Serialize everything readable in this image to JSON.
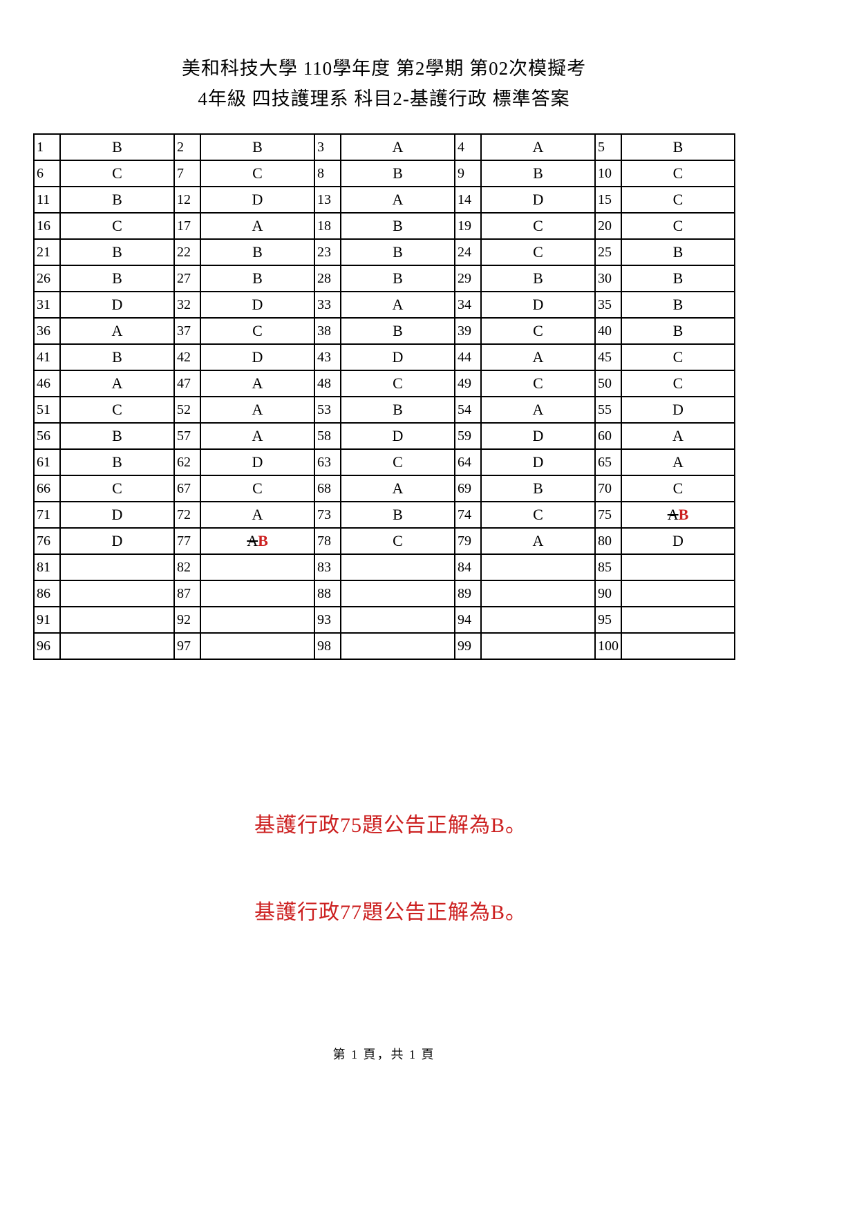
{
  "page": {
    "title_line1": "美和科技大學 110學年度 第2學期 第02次模擬考",
    "title_line2": "4年級 四技護理系 科目2-基護行政 標準答案",
    "footer_page_label": "第 1 頁，共 1 頁"
  },
  "colors": {
    "text": "#000000",
    "border": "#000000",
    "background": "#ffffff",
    "correction_red": "#cc2020"
  },
  "answer_table": {
    "rows": [
      [
        {
          "num": "1",
          "ans": "B"
        },
        {
          "num": "2",
          "ans": "B"
        },
        {
          "num": "3",
          "ans": "A"
        },
        {
          "num": "4",
          "ans": "A"
        },
        {
          "num": "5",
          "ans": "B"
        }
      ],
      [
        {
          "num": "6",
          "ans": "C"
        },
        {
          "num": "7",
          "ans": "C"
        },
        {
          "num": "8",
          "ans": "B"
        },
        {
          "num": "9",
          "ans": "B"
        },
        {
          "num": "10",
          "ans": "C"
        }
      ],
      [
        {
          "num": "11",
          "ans": "B"
        },
        {
          "num": "12",
          "ans": "D"
        },
        {
          "num": "13",
          "ans": "A"
        },
        {
          "num": "14",
          "ans": "D"
        },
        {
          "num": "15",
          "ans": "C"
        }
      ],
      [
        {
          "num": "16",
          "ans": "C"
        },
        {
          "num": "17",
          "ans": "A"
        },
        {
          "num": "18",
          "ans": "B"
        },
        {
          "num": "19",
          "ans": "C"
        },
        {
          "num": "20",
          "ans": "C"
        }
      ],
      [
        {
          "num": "21",
          "ans": "B"
        },
        {
          "num": "22",
          "ans": "B"
        },
        {
          "num": "23",
          "ans": "B"
        },
        {
          "num": "24",
          "ans": "C"
        },
        {
          "num": "25",
          "ans": "B"
        }
      ],
      [
        {
          "num": "26",
          "ans": "B"
        },
        {
          "num": "27",
          "ans": "B"
        },
        {
          "num": "28",
          "ans": "B"
        },
        {
          "num": "29",
          "ans": "B"
        },
        {
          "num": "30",
          "ans": "B"
        }
      ],
      [
        {
          "num": "31",
          "ans": "D"
        },
        {
          "num": "32",
          "ans": "D"
        },
        {
          "num": "33",
          "ans": "A"
        },
        {
          "num": "34",
          "ans": "D"
        },
        {
          "num": "35",
          "ans": "B"
        }
      ],
      [
        {
          "num": "36",
          "ans": "A"
        },
        {
          "num": "37",
          "ans": "C"
        },
        {
          "num": "38",
          "ans": "B"
        },
        {
          "num": "39",
          "ans": "C"
        },
        {
          "num": "40",
          "ans": "B"
        }
      ],
      [
        {
          "num": "41",
          "ans": "B"
        },
        {
          "num": "42",
          "ans": "D"
        },
        {
          "num": "43",
          "ans": "D"
        },
        {
          "num": "44",
          "ans": "A"
        },
        {
          "num": "45",
          "ans": "C"
        }
      ],
      [
        {
          "num": "46",
          "ans": "A"
        },
        {
          "num": "47",
          "ans": "A"
        },
        {
          "num": "48",
          "ans": "C"
        },
        {
          "num": "49",
          "ans": "C"
        },
        {
          "num": "50",
          "ans": "C"
        }
      ],
      [
        {
          "num": "51",
          "ans": "C"
        },
        {
          "num": "52",
          "ans": "A"
        },
        {
          "num": "53",
          "ans": "B"
        },
        {
          "num": "54",
          "ans": "A"
        },
        {
          "num": "55",
          "ans": "D"
        }
      ],
      [
        {
          "num": "56",
          "ans": "B"
        },
        {
          "num": "57",
          "ans": "A"
        },
        {
          "num": "58",
          "ans": "D"
        },
        {
          "num": "59",
          "ans": "D"
        },
        {
          "num": "60",
          "ans": "A"
        }
      ],
      [
        {
          "num": "61",
          "ans": "B"
        },
        {
          "num": "62",
          "ans": "D"
        },
        {
          "num": "63",
          "ans": "C"
        },
        {
          "num": "64",
          "ans": "D"
        },
        {
          "num": "65",
          "ans": "A"
        }
      ],
      [
        {
          "num": "66",
          "ans": "C"
        },
        {
          "num": "67",
          "ans": "C"
        },
        {
          "num": "68",
          "ans": "A"
        },
        {
          "num": "69",
          "ans": "B"
        },
        {
          "num": "70",
          "ans": "C"
        }
      ],
      [
        {
          "num": "71",
          "ans": "D"
        },
        {
          "num": "72",
          "ans": "A"
        },
        {
          "num": "73",
          "ans": "B"
        },
        {
          "num": "74",
          "ans": "C"
        },
        {
          "num": "75",
          "ans_original": "A",
          "ans_corrected": "B"
        }
      ],
      [
        {
          "num": "76",
          "ans": "D"
        },
        {
          "num": "77",
          "ans_original": "A",
          "ans_corrected": "B"
        },
        {
          "num": "78",
          "ans": "C"
        },
        {
          "num": "79",
          "ans": "A"
        },
        {
          "num": "80",
          "ans": "D"
        }
      ],
      [
        {
          "num": "81",
          "ans": ""
        },
        {
          "num": "82",
          "ans": ""
        },
        {
          "num": "83",
          "ans": ""
        },
        {
          "num": "84",
          "ans": ""
        },
        {
          "num": "85",
          "ans": ""
        }
      ],
      [
        {
          "num": "86",
          "ans": ""
        },
        {
          "num": "87",
          "ans": ""
        },
        {
          "num": "88",
          "ans": ""
        },
        {
          "num": "89",
          "ans": ""
        },
        {
          "num": "90",
          "ans": ""
        }
      ],
      [
        {
          "num": "91",
          "ans": ""
        },
        {
          "num": "92",
          "ans": ""
        },
        {
          "num": "93",
          "ans": ""
        },
        {
          "num": "94",
          "ans": ""
        },
        {
          "num": "95",
          "ans": ""
        }
      ],
      [
        {
          "num": "96",
          "ans": ""
        },
        {
          "num": "97",
          "ans": ""
        },
        {
          "num": "98",
          "ans": ""
        },
        {
          "num": "99",
          "ans": ""
        },
        {
          "num": "100",
          "ans": ""
        }
      ]
    ]
  },
  "notes": {
    "lines": [
      "基護行政75題公告正解為B。",
      "基護行政77題公告正解為B。"
    ]
  }
}
